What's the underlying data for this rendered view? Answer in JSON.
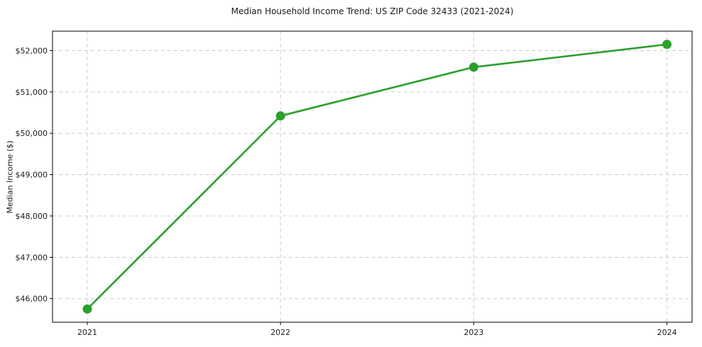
{
  "chart_data": {
    "type": "line",
    "title": "Median Household Income Trend: US ZIP Code 32433 (2021-2024)",
    "xlabel": "",
    "ylabel": "Median Income ($)",
    "x": [
      2021,
      2022,
      2023,
      2024
    ],
    "series": [
      {
        "name": "Median Household Income",
        "values": [
          45750,
          50420,
          51600,
          52150
        ],
        "color": "#2ca02c",
        "marker": "circle",
        "marker_radius": 6.5,
        "line_width": 2.6
      }
    ],
    "xtick_labels": [
      "2021",
      "2022",
      "2023",
      "2024"
    ],
    "ytick_values": [
      46000,
      47000,
      48000,
      49000,
      50000,
      51000,
      52000
    ],
    "ytick_labels": [
      "$46,000",
      "$47,000",
      "$48,000",
      "$49,000",
      "$50,000",
      "$51,000",
      "$52,000"
    ],
    "xlim": [
      2020.82,
      2024.13
    ],
    "ylim": [
      45430,
      52470
    ],
    "grid": true,
    "grid_color": "#cccccc",
    "grid_style": "dashed",
    "legend_position": "none",
    "spine_color": "#000000",
    "background_color": "#ffffff"
  }
}
